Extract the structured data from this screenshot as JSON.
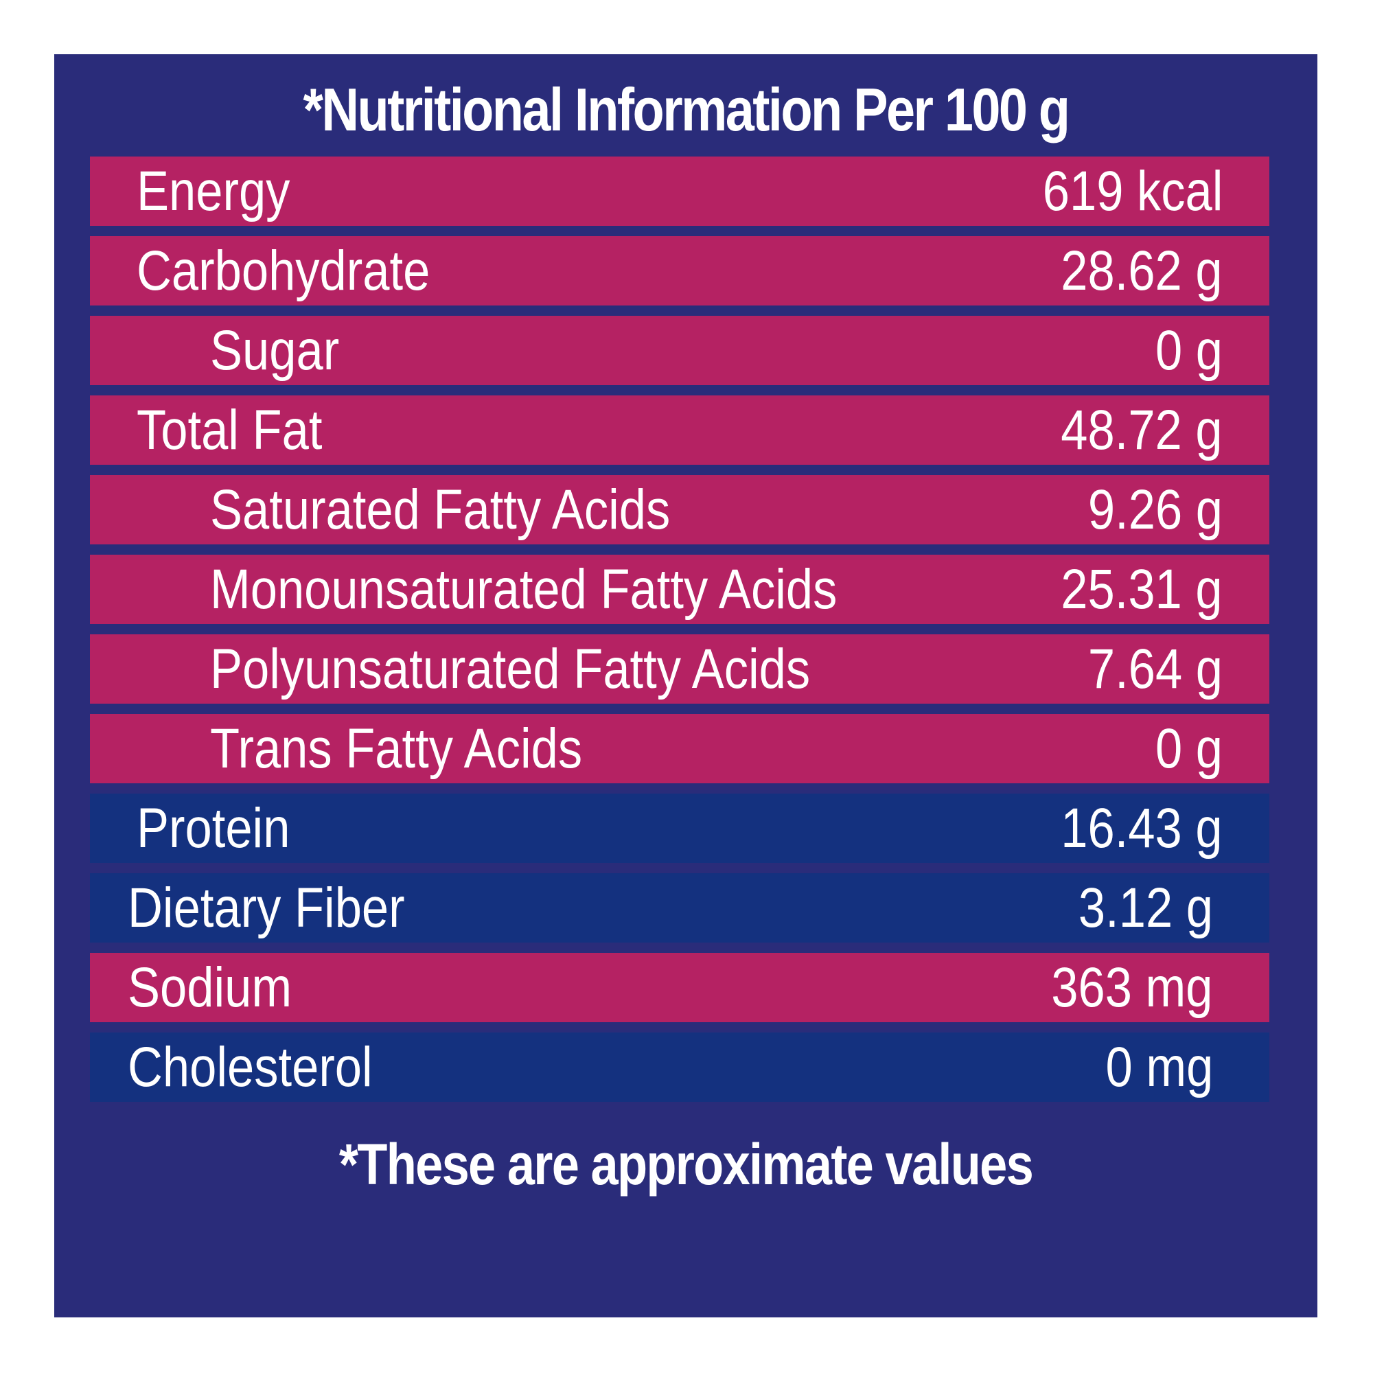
{
  "title": "*Nutritional Information Per 100 g",
  "rows": [
    {
      "name": "Energy",
      "value": "619 kcal",
      "color": "#b52263"
    },
    {
      "name": "Carbohydrate",
      "value": "28.62 g",
      "color": "#b52263"
    },
    {
      "name": "Sugar",
      "value": "0 g",
      "color": "#b52263"
    },
    {
      "name": "Total Fat",
      "value": "48.72 g",
      "color": "#b52263"
    },
    {
      "name": "Saturated Fatty Acids",
      "value": "9.26 g",
      "color": "#b52263"
    },
    {
      "name": "Monounsaturated Fatty Acids",
      "value": "25.31 g",
      "color": "#b52263"
    },
    {
      "name": "Polyunsaturated Fatty Acids",
      "value": "7.64 g",
      "color": "#b52263"
    },
    {
      "name": "Trans Fatty Acids",
      "value": "0 g",
      "color": "#b52263"
    },
    {
      "name": "Protein",
      "value": "16.43 g",
      "color": "#14317f"
    },
    {
      "name": "Dietary Fiber",
      "value": "3.12 g",
      "color": "#14317f"
    },
    {
      "name": "Sodium",
      "value": "363 mg",
      "color": "#b52263"
    },
    {
      "name": "Cholesterol",
      "value": "0 mg",
      "color": "#14317f"
    }
  ],
  "footer": "*These are approximate values",
  "colors": {
    "background": "#2a2c7a",
    "pink_row": "#b52263",
    "blue_row": "#14317f",
    "text": "#ffffff"
  }
}
